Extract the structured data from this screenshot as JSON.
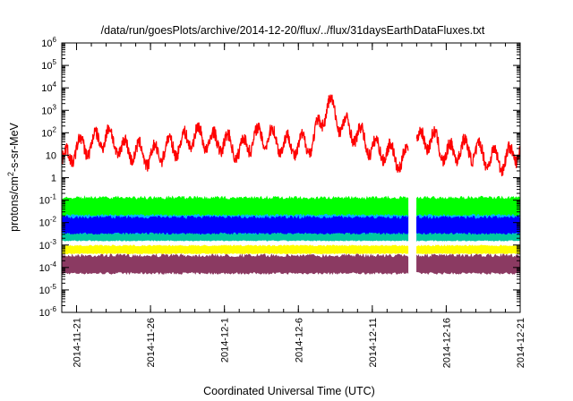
{
  "chart_data": {
    "type": "line",
    "title": "/data/run/goesPlots/archive/2014-12-20/flux/../flux/31daysEarthDataFluxes.txt",
    "xlabel": "Coordinated Universal Time (UTC)",
    "ylabel": "protons/cm2-s-sr-MeV",
    "ylabel_parts": {
      "base": "protons/cm",
      "sup": "2",
      "rest": "-s-sr-MeV"
    },
    "yscale": "log",
    "ylim": [
      1e-06,
      1000000.0
    ],
    "y_ticks": [
      {
        "exp": "-6",
        "value": 1e-06
      },
      {
        "exp": "-5",
        "value": 1e-05
      },
      {
        "exp": "-4",
        "value": 0.0001
      },
      {
        "exp": "-3",
        "value": 0.001
      },
      {
        "exp": "-2",
        "value": 0.01
      },
      {
        "exp": "-1",
        "value": 0.1
      },
      {
        "exp": "",
        "value": 1
      },
      {
        "exp": "",
        "value": 10
      },
      {
        "exp": "2",
        "value": 100.0
      },
      {
        "exp": "3",
        "value": 1000.0
      },
      {
        "exp": "4",
        "value": 10000.0
      },
      {
        "exp": "5",
        "value": 100000.0
      },
      {
        "exp": "6",
        "value": 1000000.0
      }
    ],
    "y_tick_bases": [
      "10",
      "10",
      "10",
      "10",
      "10",
      "10",
      "1",
      "10",
      "10",
      "10",
      "10",
      "10",
      "10"
    ],
    "x_range": [
      "2014-11-20",
      "2014-12-21"
    ],
    "x_ticks": [
      "2014-11-21",
      "2014-11-26",
      "2014-12-1",
      "2014-12-6",
      "2014-12-11",
      "2014-12-16",
      "2014-12-21"
    ],
    "x_tick_dates": [
      "2014-11-21",
      "2014-11-26",
      "2014-12-01",
      "2014-12-06",
      "2014-12-11",
      "2014-12-16",
      "2014-12-21"
    ],
    "data_gap": [
      "2014-12-13T10:00",
      "2014-12-14T00:00"
    ],
    "series": [
      {
        "color": "#ff0000",
        "style": "line",
        "x": [
          "2014-11-20",
          "2014-11-21",
          "2014-11-22",
          "2014-11-23",
          "2014-11-24",
          "2014-11-25",
          "2014-11-26",
          "2014-11-27",
          "2014-11-28",
          "2014-11-29",
          "2014-11-30",
          "2014-12-01",
          "2014-12-02",
          "2014-12-03",
          "2014-12-04",
          "2014-12-05",
          "2014-12-06",
          "2014-12-07",
          "2014-12-08",
          "2014-12-09",
          "2014-12-10",
          "2014-12-11",
          "2014-12-12",
          "2014-12-13",
          "2014-12-14",
          "2014-12-15",
          "2014-12-16",
          "2014-12-17",
          "2014-12-18",
          "2014-12-19",
          "2014-12-20",
          "2014-12-21"
        ],
        "y": [
          5,
          20,
          30,
          80,
          20,
          15,
          8,
          20,
          30,
          80,
          40,
          40,
          15,
          60,
          70,
          30,
          25,
          40,
          2000,
          200,
          90,
          20,
          15,
          5,
          40,
          60,
          10,
          20,
          15,
          7,
          6,
          20
        ],
        "y_range": [
          0.3,
          6000
        ]
      },
      {
        "color": "#00ff00",
        "style": "band",
        "y_low": 0.02,
        "y_high": 0.15
      },
      {
        "color": "#00b4ff",
        "style": "band",
        "y_low": 0.003,
        "y_high": 0.06
      },
      {
        "color": "#0000ff",
        "style": "band",
        "y_low": 0.003,
        "y_high": 0.02
      },
      {
        "color": "#00c8a0",
        "style": "band",
        "y_low": 0.0015,
        "y_high": 0.004
      },
      {
        "color": "#ffff00",
        "style": "band",
        "y_low": 0.0004,
        "y_high": 0.001
      },
      {
        "color": "#8b3a62",
        "style": "band",
        "y_low": 5e-05,
        "y_high": 0.0004
      }
    ],
    "grid": false,
    "legend": "none"
  }
}
